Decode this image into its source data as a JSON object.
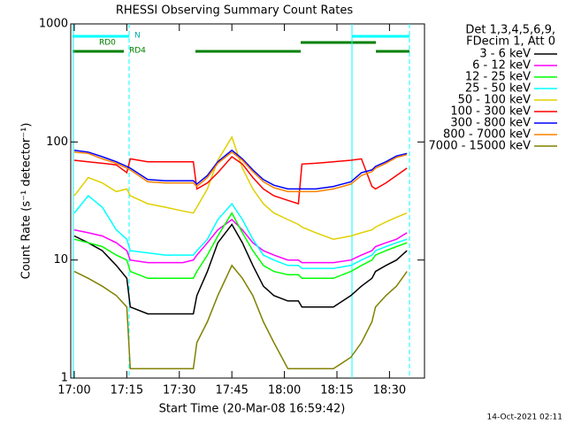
{
  "chart_data": {
    "type": "line",
    "title": "RHESSI Observing Summary Count Rates",
    "x_label": "Start Time (20-Mar-08 16:59:42)",
    "y_label": "Count Rate (s⁻¹ detector⁻¹)",
    "legend_header": [
      "Det 1,3,4,5,6,9,",
      "FDecim 1, Att 0"
    ],
    "footer": "14-Oct-2021 02:11",
    "annotations": [
      "N",
      "RD0",
      "RD4"
    ],
    "ylog": true,
    "grid": false,
    "legend": "outside-right",
    "xlim": [
      -1,
      100
    ],
    "ylim": [
      1,
      1000
    ],
    "xticks": [
      {
        "value": 0,
        "label": "17:00"
      },
      {
        "value": 15,
        "label": "17:15"
      },
      {
        "value": 30,
        "label": "17:30"
      },
      {
        "value": 45,
        "label": "17:45"
      },
      {
        "value": 60,
        "label": "18:00"
      },
      {
        "value": 75,
        "label": "18:15"
      },
      {
        "value": 90,
        "label": "18:30"
      }
    ],
    "yticks": [
      1,
      10,
      100,
      1000
    ],
    "x": [
      0,
      4,
      8,
      12,
      15,
      16,
      21,
      26,
      31,
      34,
      35,
      38,
      41,
      45,
      48,
      51,
      54,
      57,
      61,
      64,
      65,
      69,
      74,
      79,
      82,
      85,
      86,
      89,
      92,
      95
    ],
    "series": [
      {
        "name": "3 - 6 keV",
        "color": "#000000",
        "values": [
          16,
          14,
          12,
          9,
          7,
          4,
          3.5,
          3.5,
          3.5,
          3.5,
          5,
          8,
          14,
          20,
          14,
          9,
          6,
          5,
          4.5,
          4.5,
          4,
          4,
          4,
          5,
          6,
          7,
          8,
          9,
          10,
          12
        ]
      },
      {
        "name": "6 - 12 keV",
        "color": "#ff00ff",
        "values": [
          18,
          17,
          16,
          14,
          12,
          10,
          9.5,
          9.5,
          9.5,
          10,
          11,
          14,
          18,
          22,
          18,
          14,
          12,
          11,
          10,
          10,
          9.5,
          9.5,
          9.5,
          10,
          11,
          12,
          13,
          14,
          15,
          17
        ]
      },
      {
        "name": "12 - 25 keV",
        "color": "#00ff00",
        "values": [
          15,
          14,
          13,
          11,
          10,
          8,
          7,
          7,
          7,
          7,
          8,
          11,
          16,
          25,
          17,
          12,
          9,
          8,
          7.5,
          7.5,
          7,
          7,
          7,
          8,
          9,
          10,
          11,
          12,
          13,
          14
        ]
      },
      {
        "name": "25 - 50 keV",
        "color": "#00ffff",
        "values": [
          25,
          35,
          28,
          18,
          15,
          12,
          11.5,
          11,
          11,
          11,
          12,
          15,
          22,
          30,
          22,
          15,
          11,
          10,
          9,
          9,
          8.5,
          8.5,
          8.5,
          9,
          10,
          11,
          12,
          13,
          14,
          15
        ]
      },
      {
        "name": "50 - 100 keV",
        "color": "#e0d000",
        "values": [
          35,
          50,
          45,
          38,
          40,
          35,
          30,
          28,
          26,
          25,
          28,
          40,
          70,
          110,
          60,
          40,
          30,
          25,
          22,
          20,
          19,
          17,
          15,
          16,
          17,
          18,
          19,
          21,
          23,
          25
        ]
      },
      {
        "name": "100 - 300 keV",
        "color": "#ff0000",
        "values": [
          70,
          68,
          66,
          64,
          55,
          72,
          68,
          68,
          68,
          68,
          40,
          45,
          55,
          75,
          65,
          50,
          40,
          35,
          32,
          30,
          65,
          66,
          68,
          70,
          72,
          42,
          40,
          45,
          52,
          60
        ]
      },
      {
        "name": "300 - 800 keV",
        "color": "#0000ff",
        "values": [
          85,
          82,
          75,
          68,
          62,
          60,
          48,
          47,
          47,
          47,
          44,
          52,
          68,
          85,
          72,
          58,
          48,
          43,
          40,
          40,
          40,
          40,
          42,
          46,
          55,
          58,
          62,
          68,
          76,
          80
        ]
      },
      {
        "name": "800 - 7000 keV",
        "color": "#ff8000",
        "values": [
          82,
          80,
          72,
          66,
          60,
          58,
          46,
          45,
          45,
          45,
          42,
          50,
          66,
          82,
          70,
          56,
          46,
          41,
          38,
          38,
          38,
          38,
          40,
          44,
          52,
          56,
          60,
          66,
          74,
          78
        ]
      },
      {
        "name": "7000 - 15000 keV",
        "color": "#808000",
        "values": [
          8,
          7,
          6,
          5,
          4,
          1.2,
          1.2,
          1.2,
          1.2,
          1.2,
          2,
          3,
          5,
          9,
          7,
          5,
          3,
          2,
          1.2,
          1.2,
          1.2,
          1.2,
          1.2,
          1.5,
          2,
          3,
          4,
          5,
          6,
          8
        ]
      }
    ]
  }
}
